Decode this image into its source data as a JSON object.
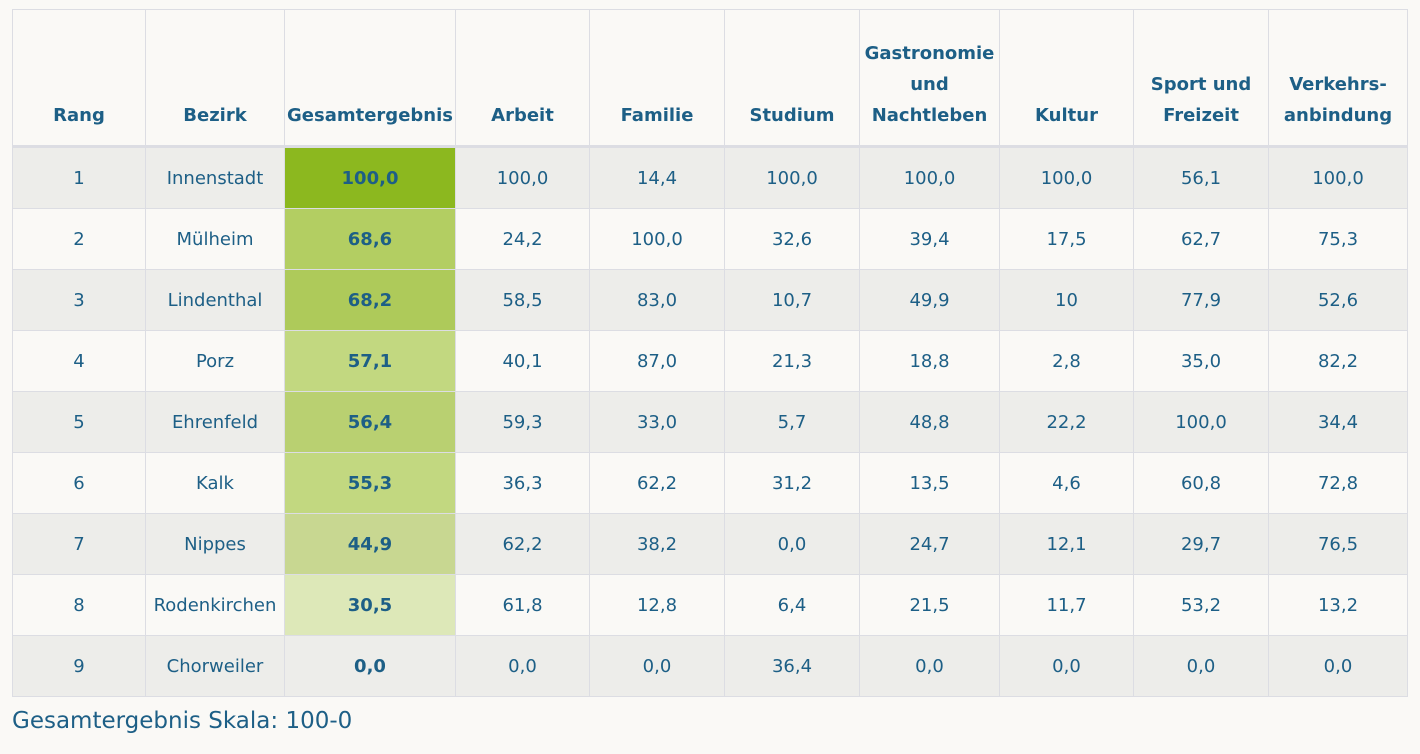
{
  "table": {
    "headers": [
      "Rang",
      "Bezirk",
      "Gesamtergebnis",
      "Arbeit",
      "Familie",
      "Studium",
      "Gastronomie und Nachtleben",
      "Kultur",
      "Sport und Freizeit",
      "Verkehrs-anbindung"
    ],
    "rows": [
      [
        "1",
        "Innenstadt",
        "100,0",
        "100,0",
        "14,4",
        "100,0",
        "100,0",
        "100,0",
        "56,1",
        "100,0"
      ],
      [
        "2",
        "Mülheim",
        "68,6",
        "24,2",
        "100,0",
        "32,6",
        "39,4",
        "17,5",
        "62,7",
        "75,3"
      ],
      [
        "3",
        "Lindenthal",
        "68,2",
        "58,5",
        "83,0",
        "10,7",
        "49,9",
        "10",
        "77,9",
        "52,6"
      ],
      [
        "4",
        "Porz",
        "57,1",
        "40,1",
        "87,0",
        "21,3",
        "18,8",
        "2,8",
        "35,0",
        "82,2"
      ],
      [
        "5",
        "Ehrenfeld",
        "56,4",
        "59,3",
        "33,0",
        "5,7",
        "48,8",
        "22,2",
        "100,0",
        "34,4"
      ],
      [
        "6",
        "Kalk",
        "55,3",
        "36,3",
        "62,2",
        "31,2",
        "13,5",
        "4,6",
        "60,8",
        "72,8"
      ],
      [
        "7",
        "Nippes",
        "44,9",
        "62,2",
        "38,2",
        "0,0",
        "24,7",
        "12,1",
        "29,7",
        "76,5"
      ],
      [
        "8",
        "Rodenkirchen",
        "30,5",
        "61,8",
        "12,8",
        "6,4",
        "21,5",
        "11,7",
        "53,2",
        "13,2"
      ],
      [
        "9",
        "Chorweiler",
        "0,0",
        "0,0",
        "0,0",
        "36,4",
        "0,0",
        "0,0",
        "0,0",
        "0,0"
      ]
    ],
    "total_colors": [
      "#8cb81f",
      "#b3ce62",
      "#aeca5a",
      "#c2d880",
      "#b9d071",
      "#c2d880",
      "#c8d791",
      "#dde8b8",
      "#ededea"
    ]
  },
  "caption": "Gesamtergebnis Skala: 100-0"
}
